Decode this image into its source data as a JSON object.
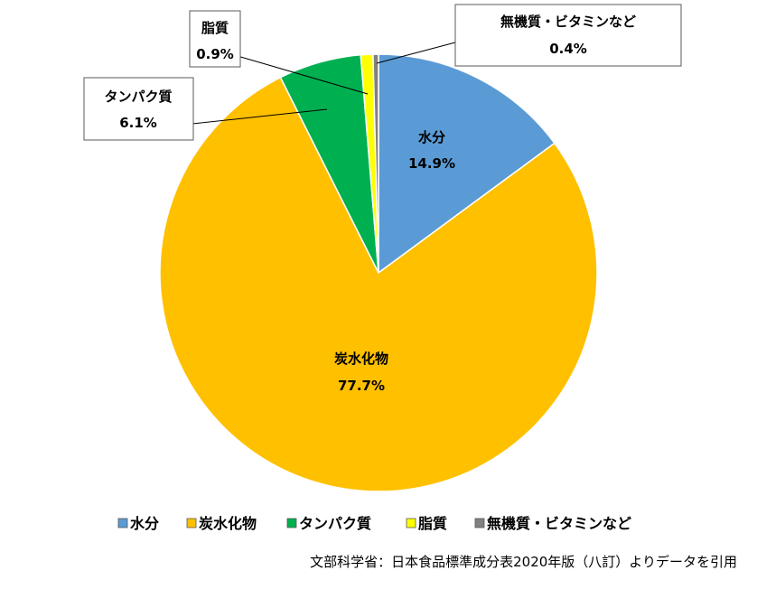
{
  "chart_data": {
    "type": "pie",
    "categories": [
      "水分",
      "炭水化物",
      "タンパク質",
      "脂質",
      "無機質・ビタミンなど"
    ],
    "values": [
      14.9,
      77.7,
      6.1,
      0.9,
      0.4
    ],
    "value_labels": [
      "14.9%",
      "77.7%",
      "6.1%",
      "0.9%",
      "0.4%"
    ],
    "colors": [
      "#5b9bd5",
      "#ffc000",
      "#00b050",
      "#ffff00",
      "#808080"
    ],
    "start_angle_deg": 0,
    "direction": "clockwise",
    "legend": "bottom"
  },
  "source_note": "文部科学省：日本食品標準成分表2020年版（八訂）よりデータを引用"
}
